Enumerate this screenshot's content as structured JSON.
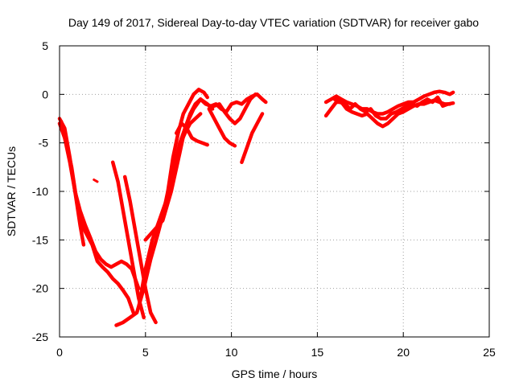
{
  "chart_data": {
    "type": "scatter",
    "title": "Day 149 of 2017, Sidereal Day-to-day VTEC variation (SDTVAR) for receiver gabo",
    "xlabel": "GPS time / hours",
    "ylabel": "SDTVAR / TECUs",
    "xlim": [
      0,
      25
    ],
    "ylim": [
      -25,
      5
    ],
    "xticks": [
      0,
      5,
      10,
      15,
      20,
      25
    ],
    "yticks": [
      5,
      0,
      -5,
      -10,
      -15,
      -20,
      -25
    ],
    "xtick_labels": [
      "0",
      "5",
      "10",
      "15",
      "20",
      "25"
    ],
    "ytick_labels": [
      "5",
      "0",
      "-5",
      "-10",
      "-15",
      "-20",
      "-25"
    ],
    "grid": true,
    "legend": false,
    "marker": "+",
    "color": "#ff0000",
    "series": [
      {
        "x": [
          0.0,
          0.3,
          0.6,
          0.9,
          1.2,
          1.5,
          1.8,
          2.1,
          2.4,
          2.7,
          3.0,
          3.3,
          3.6,
          3.9,
          4.2,
          4.4,
          4.6
        ],
        "y": [
          -3.0,
          -4.5,
          -7.0,
          -10.0,
          -12.0,
          -13.5,
          -14.8,
          -16.2,
          -17.0,
          -17.5,
          -17.8,
          -17.5,
          -17.2,
          -17.5,
          -18.0,
          -19.0,
          -20.0
        ]
      },
      {
        "x": [
          0.1,
          0.4,
          0.7,
          1.0,
          1.3,
          1.6,
          1.9,
          2.2,
          2.5,
          2.8,
          3.1,
          3.4,
          3.7,
          4.0,
          4.3
        ],
        "y": [
          -2.8,
          -5.0,
          -7.5,
          -11.0,
          -13.5,
          -14.5,
          -15.5,
          -17.2,
          -17.8,
          -18.3,
          -19.0,
          -19.5,
          -20.2,
          -21.0,
          -22.5
        ]
      },
      {
        "x": [
          0.0,
          0.3,
          0.6,
          0.9,
          1.2,
          1.4
        ],
        "y": [
          -2.5,
          -3.5,
          -6.5,
          -10.0,
          -13.5,
          -15.5
        ]
      },
      {
        "x": [
          2.0,
          2.2
        ],
        "y": [
          -8.8,
          -9.0
        ]
      },
      {
        "x": [
          3.1,
          3.4,
          3.7,
          4.0,
          4.3,
          4.6,
          4.9
        ],
        "y": [
          -7.0,
          -9.0,
          -12.0,
          -15.0,
          -18.0,
          -21.0,
          -23.0
        ]
      },
      {
        "x": [
          3.8,
          4.1,
          4.4,
          4.7,
          5.0,
          5.3,
          5.6
        ],
        "y": [
          -8.5,
          -11.0,
          -14.0,
          -17.0,
          -20.0,
          -22.5,
          -23.5
        ]
      },
      {
        "x": [
          3.3,
          3.7,
          4.1,
          4.5,
          4.9,
          5.3,
          5.7,
          6.0,
          6.3,
          6.6,
          6.9,
          7.2,
          7.5,
          7.8,
          8.1,
          8.4,
          8.6
        ],
        "y": [
          -23.8,
          -23.5,
          -23.0,
          -22.5,
          -20.0,
          -17.0,
          -14.5,
          -12.5,
          -10.0,
          -6.5,
          -4.0,
          -2.0,
          -1.0,
          0.0,
          0.5,
          0.2,
          -0.3
        ]
      },
      {
        "x": [
          4.6,
          5.0,
          5.4,
          5.8,
          6.2,
          6.6,
          7.0,
          7.4,
          7.8,
          8.2,
          8.6,
          8.9
        ],
        "y": [
          -22.0,
          -18.0,
          -15.0,
          -13.0,
          -11.0,
          -8.0,
          -5.0,
          -3.0,
          -1.5,
          -0.5,
          -1.0,
          -1.5
        ]
      },
      {
        "x": [
          5.0,
          5.5,
          6.0,
          6.5,
          7.0,
          7.3,
          7.6,
          7.9,
          8.2,
          8.5,
          8.8,
          9.1,
          9.4,
          9.7,
          10.0,
          10.3,
          10.6,
          10.9,
          11.2,
          11.5,
          11.8,
          12.0
        ],
        "y": [
          -15.0,
          -14.0,
          -13.0,
          -10.0,
          -6.0,
          -3.5,
          -2.0,
          -1.0,
          -0.5,
          -1.0,
          -1.2,
          -1.0,
          -1.5,
          -1.8,
          -1.0,
          -0.8,
          -1.0,
          -0.5,
          -0.2,
          0.0,
          -0.5,
          -0.8
        ]
      },
      {
        "x": [
          6.8,
          7.1,
          7.4,
          7.7,
          8.0,
          8.3,
          8.6
        ],
        "y": [
          -4.0,
          -3.0,
          -3.5,
          -4.5,
          -4.8,
          -5.0,
          -5.2
        ]
      },
      {
        "x": [
          7.0,
          7.3,
          7.6,
          7.9,
          8.2
        ],
        "y": [
          -5.2,
          -4.0,
          -3.0,
          -2.5,
          -2.0
        ]
      },
      {
        "x": [
          8.7,
          9.0,
          9.3,
          9.6,
          9.9,
          10.2
        ],
        "y": [
          -1.5,
          -2.5,
          -3.5,
          -4.5,
          -5.0,
          -5.3
        ]
      },
      {
        "x": [
          9.0,
          9.3,
          9.6,
          9.9,
          10.2,
          10.5,
          10.8,
          11.1,
          11.4
        ],
        "y": [
          -1.2,
          -1.0,
          -1.8,
          -2.5,
          -3.0,
          -2.5,
          -1.5,
          -0.5,
          0.0
        ]
      },
      {
        "x": [
          10.6,
          10.9,
          11.2,
          11.5,
          11.8
        ],
        "y": [
          -7.0,
          -5.5,
          -4.0,
          -3.0,
          -2.0
        ]
      },
      {
        "x": [
          15.5,
          15.8,
          16.1,
          16.4,
          16.7,
          17.0,
          17.3,
          17.6,
          17.9,
          18.2,
          18.5,
          18.8,
          19.1,
          19.4,
          19.7,
          20.0,
          20.3,
          20.6,
          20.9,
          21.2,
          21.5,
          21.8,
          22.1,
          22.4,
          22.7,
          22.9
        ],
        "y": [
          -0.8,
          -0.5,
          -0.2,
          -0.5,
          -0.8,
          -1.0,
          -1.2,
          -1.5,
          -1.5,
          -1.8,
          -2.0,
          -2.0,
          -1.8,
          -1.5,
          -1.2,
          -1.0,
          -0.8,
          -0.8,
          -0.5,
          -0.2,
          0.0,
          0.2,
          0.3,
          0.2,
          0.0,
          0.2
        ]
      },
      {
        "x": [
          15.5,
          15.8,
          16.1,
          16.4,
          16.7,
          17.0,
          17.3,
          17.6,
          17.9,
          18.2,
          18.5,
          18.8,
          19.1,
          19.4,
          19.7,
          20.0,
          20.3,
          20.6,
          20.9,
          21.2,
          21.5,
          21.8,
          22.1,
          22.4,
          22.7
        ],
        "y": [
          -2.2,
          -1.5,
          -0.8,
          -0.8,
          -1.5,
          -1.8,
          -2.0,
          -2.2,
          -2.0,
          -2.5,
          -3.0,
          -3.3,
          -3.0,
          -2.5,
          -2.0,
          -1.8,
          -1.5,
          -1.2,
          -1.0,
          -1.0,
          -0.8,
          -0.6,
          -0.8,
          -1.0,
          -1.0
        ]
      },
      {
        "x": [
          16.0,
          16.3,
          16.6,
          16.9,
          17.2,
          17.5,
          17.8,
          18.1,
          18.4,
          18.7,
          19.0,
          19.3,
          19.6,
          19.9,
          20.2,
          20.5,
          20.8,
          21.1,
          21.4,
          21.7,
          22.0,
          22.3,
          22.6,
          22.9
        ],
        "y": [
          -0.5,
          -0.8,
          -1.0,
          -1.5,
          -1.0,
          -1.5,
          -1.8,
          -1.5,
          -2.2,
          -2.5,
          -2.5,
          -2.0,
          -1.8,
          -1.5,
          -1.2,
          -1.0,
          -1.2,
          -0.8,
          -0.5,
          -0.8,
          -0.3,
          -1.2,
          -1.0,
          -0.9
        ]
      }
    ]
  }
}
